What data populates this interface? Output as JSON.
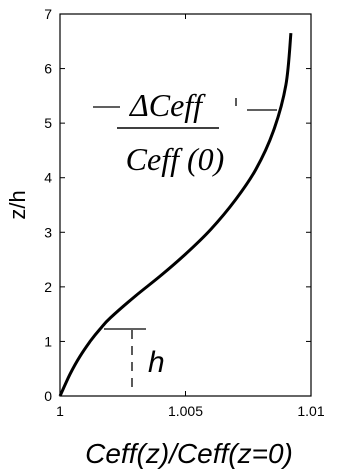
{
  "chart_data": {
    "type": "line",
    "xlabel": "Ceff(z)/Ceff(z=0)",
    "ylabel": "z/h",
    "xlim": [
      1,
      1.01
    ],
    "ylim": [
      0,
      7
    ],
    "x_ticks": [
      1,
      1.005,
      1.01
    ],
    "x_tick_labels": [
      "1",
      "1.005",
      "1.01"
    ],
    "y_ticks": [
      0,
      1,
      2,
      3,
      4,
      5,
      6,
      7
    ],
    "y_tick_labels": [
      "0",
      "1",
      "2",
      "3",
      "4",
      "5",
      "6",
      "7"
    ],
    "grid": false,
    "series": [
      {
        "x": [
          1.0,
          1.0004,
          1.0008,
          1.0012,
          1.0016,
          1.002,
          1.003,
          1.004,
          1.005,
          1.006,
          1.007,
          1.0078,
          1.0085,
          1.009,
          1.0092
        ],
        "y": [
          0.0,
          0.4,
          0.73,
          1.0,
          1.23,
          1.43,
          1.83,
          2.2,
          2.6,
          3.05,
          3.6,
          4.15,
          4.85,
          5.7,
          6.65
        ],
        "color": "#000000"
      }
    ],
    "annotations": {
      "delta_numerator": "ΔCeff",
      "delta_denominator": "Ceff (0)",
      "h_label": "h"
    }
  }
}
